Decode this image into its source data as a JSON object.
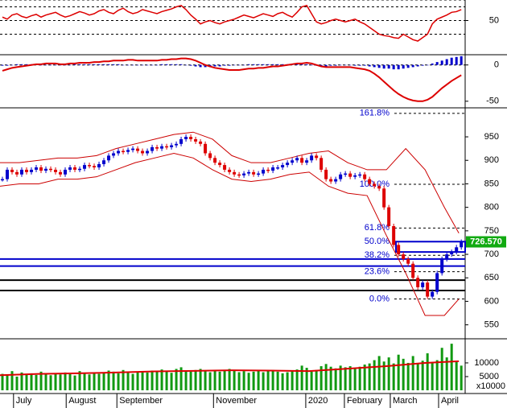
{
  "chart_data": [
    {
      "type": "line",
      "panel": "rsi",
      "color": "#dd0000",
      "ylim": [
        0,
        80
      ],
      "yticks": [
        50
      ],
      "ref_lines": [
        80,
        70,
        50,
        30
      ],
      "values": [
        55,
        52,
        58,
        60,
        56,
        54,
        57,
        59,
        55,
        58,
        60,
        62,
        58,
        55,
        57,
        60,
        63,
        61,
        58,
        60,
        64,
        66,
        62,
        60,
        65,
        68,
        63,
        60,
        62,
        66,
        64,
        62,
        60,
        63,
        65,
        67,
        70,
        72,
        66,
        58,
        52,
        45,
        48,
        50,
        47,
        45,
        48,
        50,
        52,
        55,
        58,
        56,
        54,
        57,
        60,
        58,
        56,
        60,
        62,
        58,
        55,
        62,
        70,
        72,
        60,
        48,
        45,
        47,
        50,
        52,
        50,
        48,
        50,
        52,
        48,
        45,
        40,
        35,
        30,
        28,
        27,
        25,
        24,
        30,
        26,
        22,
        20,
        25,
        30,
        45,
        52,
        55,
        58,
        62,
        63,
        66
      ]
    },
    {
      "type": "macd",
      "panel": "macd",
      "ylim": [
        -58,
        13
      ],
      "yticks": [
        0,
        -50
      ],
      "series": [
        {
          "color": "#dd0000",
          "values": [
            -8,
            -6,
            -4,
            -3,
            -2,
            -1,
            0,
            1,
            1,
            2,
            2,
            2,
            1,
            1,
            2,
            2,
            3,
            3,
            3,
            4,
            4,
            5,
            5,
            6,
            6,
            6,
            7,
            7,
            6,
            6,
            6,
            6,
            6,
            7,
            7,
            8,
            8,
            9,
            9,
            8,
            6,
            3,
            0,
            -2,
            -4,
            -5,
            -6,
            -7,
            -7,
            -7,
            -6,
            -5,
            -5,
            -4,
            -4,
            -3,
            -2,
            -2,
            -1,
            0,
            1,
            2,
            2,
            3,
            2,
            0,
            -2,
            -3,
            -3,
            -3,
            -3,
            -3,
            -3,
            -4,
            -5,
            -6,
            -8,
            -12,
            -17,
            -23,
            -29,
            -35,
            -40,
            -44,
            -47,
            -49,
            -50,
            -50,
            -48,
            -44,
            -38,
            -32,
            -27,
            -22,
            -18,
            -14
          ]
        },
        {
          "color": "#0000cc",
          "values": [
            -1,
            -1,
            0,
            1,
            1,
            1,
            1,
            1,
            0,
            0,
            0,
            0,
            0,
            0,
            0,
            1,
            1,
            1,
            1,
            1,
            1,
            1,
            1,
            1,
            1,
            0,
            0,
            0,
            0,
            0,
            0,
            0,
            0,
            1,
            1,
            1,
            1,
            1,
            0,
            -1,
            -2,
            -3,
            -3,
            -3,
            -2,
            -2,
            -1,
            -1,
            0,
            0,
            0,
            1,
            1,
            1,
            1,
            1,
            1,
            1,
            1,
            1,
            1,
            1,
            1,
            1,
            0,
            -1,
            -2,
            -2,
            -1,
            -1,
            0,
            0,
            0,
            -1,
            -1,
            -1,
            -2,
            -3,
            -4,
            -5,
            -5,
            -6,
            -6,
            -5,
            -4,
            -3,
            -2,
            -1,
            0,
            2,
            4,
            6,
            8,
            10,
            11,
            12
          ]
        }
      ]
    },
    {
      "type": "price",
      "panel": "price",
      "ylim": [
        522,
        1010
      ],
      "yticks": [
        550,
        600,
        650,
        700,
        750,
        800,
        850,
        900,
        950
      ],
      "values": [
        860,
        880,
        875,
        870,
        880,
        875,
        880,
        885,
        878,
        882,
        880,
        875,
        870,
        880,
        885,
        880,
        882,
        890,
        888,
        885,
        892,
        900,
        910,
        915,
        920,
        918,
        922,
        925,
        920,
        915,
        920,
        928,
        925,
        930,
        928,
        932,
        935,
        945,
        950,
        945,
        940,
        935,
        915,
        905,
        895,
        890,
        880,
        875,
        870,
        868,
        872,
        875,
        870,
        872,
        880,
        878,
        885,
        885,
        890,
        895,
        900,
        905,
        895,
        900,
        910,
        905,
        880,
        860,
        855,
        860,
        870,
        872,
        865,
        868,
        870,
        860,
        850,
        845,
        840,
        800,
        760,
        720,
        700,
        690,
        680,
        650,
        630,
        640,
        610,
        620,
        660,
        690,
        700,
        705,
        715,
        726.57
      ],
      "bands": {
        "color": "#cc0000",
        "x": [
          0,
          4,
          8,
          12,
          16,
          20,
          24,
          28,
          32,
          36,
          40,
          44,
          48,
          52,
          56,
          60,
          64,
          68,
          72,
          76,
          80,
          84,
          88,
          92,
          95
        ],
        "upper": [
          895,
          895,
          900,
          905,
          905,
          910,
          925,
          935,
          945,
          955,
          960,
          945,
          910,
          895,
          895,
          905,
          915,
          920,
          895,
          880,
          880,
          925,
          880,
          800,
          745
        ],
        "lower": [
          845,
          850,
          850,
          860,
          860,
          865,
          880,
          895,
          905,
          915,
          905,
          880,
          860,
          855,
          860,
          870,
          875,
          845,
          830,
          825,
          740,
          660,
          570,
          570,
          605
        ]
      },
      "fib_levels": [
        {
          "label": "161.8%",
          "value": 1000
        },
        {
          "label": "100.0%",
          "value": 849
        },
        {
          "label": "61.8%",
          "value": 756
        },
        {
          "label": "50.0%",
          "value": 727
        },
        {
          "label": "38.2%",
          "value": 698
        },
        {
          "label": "23.6%",
          "value": 663
        },
        {
          "label": "0.0%",
          "value": 605
        }
      ],
      "hlines": [
        {
          "value": 690,
          "color": "#0000cc"
        },
        {
          "value": 675,
          "color": "#0000cc"
        },
        {
          "value": 645,
          "color": "#000000"
        },
        {
          "value": 623,
          "color": "#000000"
        }
      ],
      "box": [
        705,
        727
      ],
      "price_tag": {
        "value": 726.57,
        "label": "726.570"
      }
    },
    {
      "type": "volume",
      "panel": "volume",
      "color": "#119911",
      "ylim": [
        0,
        18500
      ],
      "yticks": [
        10000,
        5000
      ],
      "unit_label": "x10000",
      "values": [
        6000,
        5500,
        7000,
        5000,
        6500,
        5800,
        6200,
        5600,
        6800,
        6000,
        5500,
        6200,
        5800,
        6500,
        6000,
        5400,
        7000,
        6200,
        5800,
        6400,
        6000,
        6600,
        7200,
        6800,
        6200,
        7400,
        6600,
        6000,
        6800,
        7000,
        6500,
        7200,
        6800,
        7600,
        7000,
        6400,
        7800,
        8400,
        7200,
        6800,
        7400,
        7800,
        7000,
        6600,
        7200,
        6800,
        7400,
        7800,
        7200,
        6600,
        7000,
        6400,
        6800,
        7200,
        6600,
        7000,
        7400,
        6800,
        6200,
        6600,
        7000,
        7600,
        9000,
        8200,
        6800,
        7400,
        8800,
        9600,
        8600,
        8000,
        9000,
        8400,
        8800,
        7800,
        8600,
        9400,
        9800,
        11000,
        12500,
        10500,
        12000,
        9800,
        13000,
        11500,
        10000,
        12500,
        9600,
        10800,
        13500,
        10200,
        11000,
        15500,
        12000,
        17000,
        10500,
        9000
      ],
      "ma": {
        "color": "#dd0000",
        "x": [
          0,
          8,
          16,
          24,
          32,
          40,
          48,
          56,
          64,
          72,
          80,
          88,
          95
        ],
        "values": [
          5500,
          6000,
          6200,
          6500,
          6900,
          7100,
          7300,
          7200,
          7000,
          7900,
          8800,
          10000,
          10600
        ]
      },
      "xlim": [
        0,
        96.3
      ],
      "xticks": [
        {
          "value": 2.8,
          "label": "July"
        },
        {
          "value": 13.7,
          "label": "August"
        },
        {
          "value": 24.2,
          "label": "September"
        },
        {
          "value": 44.2,
          "label": "November"
        },
        {
          "value": 63.3,
          "label": "2020"
        },
        {
          "value": 71.3,
          "label": "February"
        },
        {
          "value": 80.8,
          "label": "March"
        },
        {
          "value": 90.8,
          "label": "April"
        }
      ]
    }
  ]
}
